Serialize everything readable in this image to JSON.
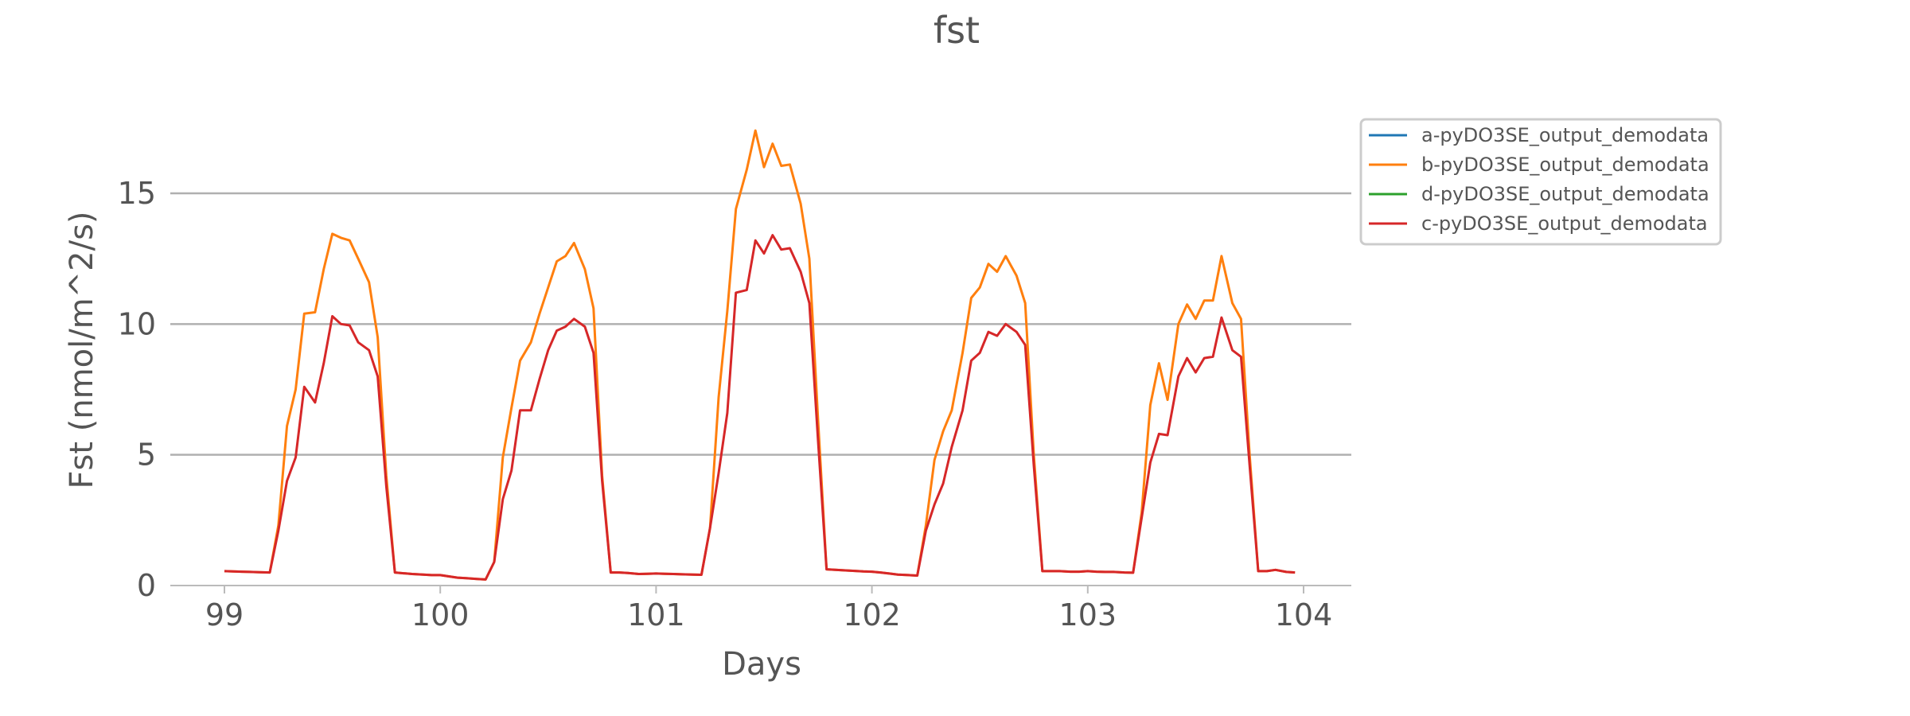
{
  "chart_data": {
    "type": "line",
    "title": "fst",
    "xlabel": "Days",
    "ylabel": "Fst (nmol/m^2/s)",
    "xlim": [
      98.75,
      104.2
    ],
    "ylim": [
      0,
      18
    ],
    "xticks": [
      99,
      100,
      101,
      102,
      103,
      104
    ],
    "xtick_labels": [
      "99",
      "100",
      "101",
      "102",
      "103",
      "104"
    ],
    "yticks": [
      0,
      5,
      10,
      15
    ],
    "ytick_labels": [
      "0",
      "5",
      "10",
      "15"
    ],
    "grid": "horizontal",
    "legend_position": "outside-top-right",
    "series": [
      {
        "name": "a-pyDO3SE_output_demodata",
        "color": "#1f77b4",
        "x": [],
        "y": []
      },
      {
        "name": "b-pyDO3SE_output_demodata",
        "color": "#ff7f0e",
        "x": [
          99.0,
          99.04,
          99.08,
          99.12,
          99.16,
          99.21,
          99.25,
          99.29,
          99.33,
          99.37,
          99.42,
          99.46,
          99.5,
          99.54,
          99.58,
          99.62,
          99.67,
          99.71,
          99.75,
          99.79,
          99.83,
          99.87,
          99.92,
          99.96,
          100.0,
          100.04,
          100.08,
          100.12,
          100.17,
          100.21,
          100.25,
          100.29,
          100.33,
          100.37,
          100.42,
          100.46,
          100.5,
          100.54,
          100.58,
          100.62,
          100.67,
          100.71,
          100.75,
          100.79,
          100.83,
          100.87,
          100.92,
          100.96,
          101.0,
          101.04,
          101.08,
          101.12,
          101.17,
          101.21,
          101.25,
          101.29,
          101.33,
          101.37,
          101.42,
          101.46,
          101.5,
          101.54,
          101.58,
          101.62,
          101.67,
          101.71,
          101.75,
          101.79,
          101.83,
          101.87,
          101.92,
          101.96,
          102.0,
          102.04,
          102.08,
          102.12,
          102.17,
          102.21,
          102.25,
          102.29,
          102.33,
          102.37,
          102.42,
          102.46,
          102.5,
          102.54,
          102.58,
          102.62,
          102.67,
          102.71,
          102.75,
          102.79,
          102.83,
          102.87,
          102.92,
          102.96,
          103.0,
          103.04,
          103.08,
          103.12,
          103.17,
          103.21,
          103.25,
          103.29,
          103.33,
          103.37,
          103.42,
          103.46,
          103.5,
          103.54,
          103.58,
          103.62,
          103.67,
          103.71,
          103.75,
          103.79,
          103.83,
          103.87,
          103.92,
          103.96
        ],
        "y": [
          0.55,
          0.54,
          0.53,
          0.52,
          0.51,
          0.5,
          2.3,
          6.1,
          7.5,
          10.4,
          10.45,
          12.1,
          13.45,
          13.3,
          13.2,
          12.5,
          11.6,
          9.5,
          4.2,
          0.5,
          0.47,
          0.44,
          0.42,
          0.4,
          0.4,
          0.35,
          0.3,
          0.28,
          0.25,
          0.23,
          0.9,
          4.9,
          6.8,
          8.6,
          9.3,
          10.4,
          11.4,
          12.4,
          12.6,
          13.1,
          12.1,
          10.6,
          4.2,
          0.5,
          0.5,
          0.48,
          0.44,
          0.45,
          0.46,
          0.45,
          0.44,
          0.43,
          0.42,
          0.41,
          2.2,
          7.2,
          10.5,
          14.4,
          15.9,
          17.4,
          16.0,
          16.9,
          16.05,
          16.1,
          14.6,
          12.5,
          6.4,
          0.62,
          0.6,
          0.58,
          0.56,
          0.54,
          0.53,
          0.5,
          0.46,
          0.42,
          0.4,
          0.38,
          2.3,
          4.8,
          5.9,
          6.7,
          8.9,
          11.0,
          11.4,
          12.3,
          12.0,
          12.6,
          11.85,
          10.8,
          5.0,
          0.55,
          0.55,
          0.55,
          0.53,
          0.53,
          0.55,
          0.53,
          0.52,
          0.52,
          0.5,
          0.49,
          2.8,
          6.9,
          8.5,
          7.1,
          10.0,
          10.75,
          10.2,
          10.9,
          10.9,
          12.6,
          10.8,
          10.2,
          5.0,
          0.55,
          0.55,
          0.6,
          0.52,
          0.5
        ]
      },
      {
        "name": "d-pyDO3SE_output_demodata",
        "color": "#2ca02c",
        "x": [],
        "y": []
      },
      {
        "name": "c-pyDO3SE_output_demodata",
        "color": "#d62728",
        "x": [
          99.0,
          99.04,
          99.08,
          99.12,
          99.16,
          99.21,
          99.25,
          99.29,
          99.33,
          99.37,
          99.42,
          99.46,
          99.5,
          99.54,
          99.58,
          99.62,
          99.67,
          99.71,
          99.75,
          99.79,
          99.83,
          99.87,
          99.92,
          99.96,
          100.0,
          100.04,
          100.08,
          100.12,
          100.17,
          100.21,
          100.25,
          100.29,
          100.33,
          100.37,
          100.42,
          100.46,
          100.5,
          100.54,
          100.58,
          100.62,
          100.67,
          100.71,
          100.75,
          100.79,
          100.83,
          100.87,
          100.92,
          100.96,
          101.0,
          101.04,
          101.08,
          101.12,
          101.17,
          101.21,
          101.25,
          101.29,
          101.33,
          101.37,
          101.42,
          101.46,
          101.5,
          101.54,
          101.58,
          101.62,
          101.67,
          101.71,
          101.75,
          101.79,
          101.83,
          101.87,
          101.92,
          101.96,
          102.0,
          102.04,
          102.08,
          102.12,
          102.17,
          102.21,
          102.25,
          102.29,
          102.33,
          102.37,
          102.42,
          102.46,
          102.5,
          102.54,
          102.58,
          102.62,
          102.67,
          102.71,
          102.75,
          102.79,
          102.83,
          102.87,
          102.92,
          102.96,
          103.0,
          103.04,
          103.08,
          103.12,
          103.17,
          103.21,
          103.25,
          103.29,
          103.33,
          103.37,
          103.42,
          103.46,
          103.5,
          103.54,
          103.58,
          103.62,
          103.67,
          103.71,
          103.75,
          103.79,
          103.83,
          103.87,
          103.92,
          103.96
        ],
        "y": [
          0.55,
          0.54,
          0.53,
          0.52,
          0.51,
          0.5,
          2.1,
          4.0,
          4.9,
          7.6,
          7.0,
          8.5,
          10.3,
          10.0,
          9.95,
          9.3,
          9.0,
          8.0,
          3.8,
          0.5,
          0.47,
          0.44,
          0.42,
          0.4,
          0.4,
          0.35,
          0.3,
          0.28,
          0.25,
          0.23,
          0.9,
          3.3,
          4.4,
          6.7,
          6.7,
          7.9,
          9.0,
          9.75,
          9.9,
          10.2,
          9.9,
          8.9,
          4.0,
          0.5,
          0.5,
          0.48,
          0.44,
          0.45,
          0.46,
          0.45,
          0.44,
          0.43,
          0.42,
          0.41,
          2.2,
          4.3,
          6.6,
          11.2,
          11.3,
          13.2,
          12.7,
          13.4,
          12.85,
          12.9,
          12.0,
          10.8,
          5.6,
          0.62,
          0.6,
          0.58,
          0.56,
          0.54,
          0.53,
          0.5,
          0.46,
          0.42,
          0.4,
          0.38,
          2.1,
          3.1,
          3.9,
          5.3,
          6.7,
          8.6,
          8.9,
          9.7,
          9.55,
          10.0,
          9.7,
          9.2,
          4.6,
          0.55,
          0.55,
          0.55,
          0.53,
          0.53,
          0.55,
          0.53,
          0.52,
          0.52,
          0.5,
          0.49,
          2.6,
          4.7,
          5.8,
          5.75,
          8.0,
          8.7,
          8.15,
          8.7,
          8.75,
          10.25,
          9.0,
          8.75,
          4.6,
          0.55,
          0.55,
          0.6,
          0.52,
          0.5
        ]
      }
    ]
  }
}
